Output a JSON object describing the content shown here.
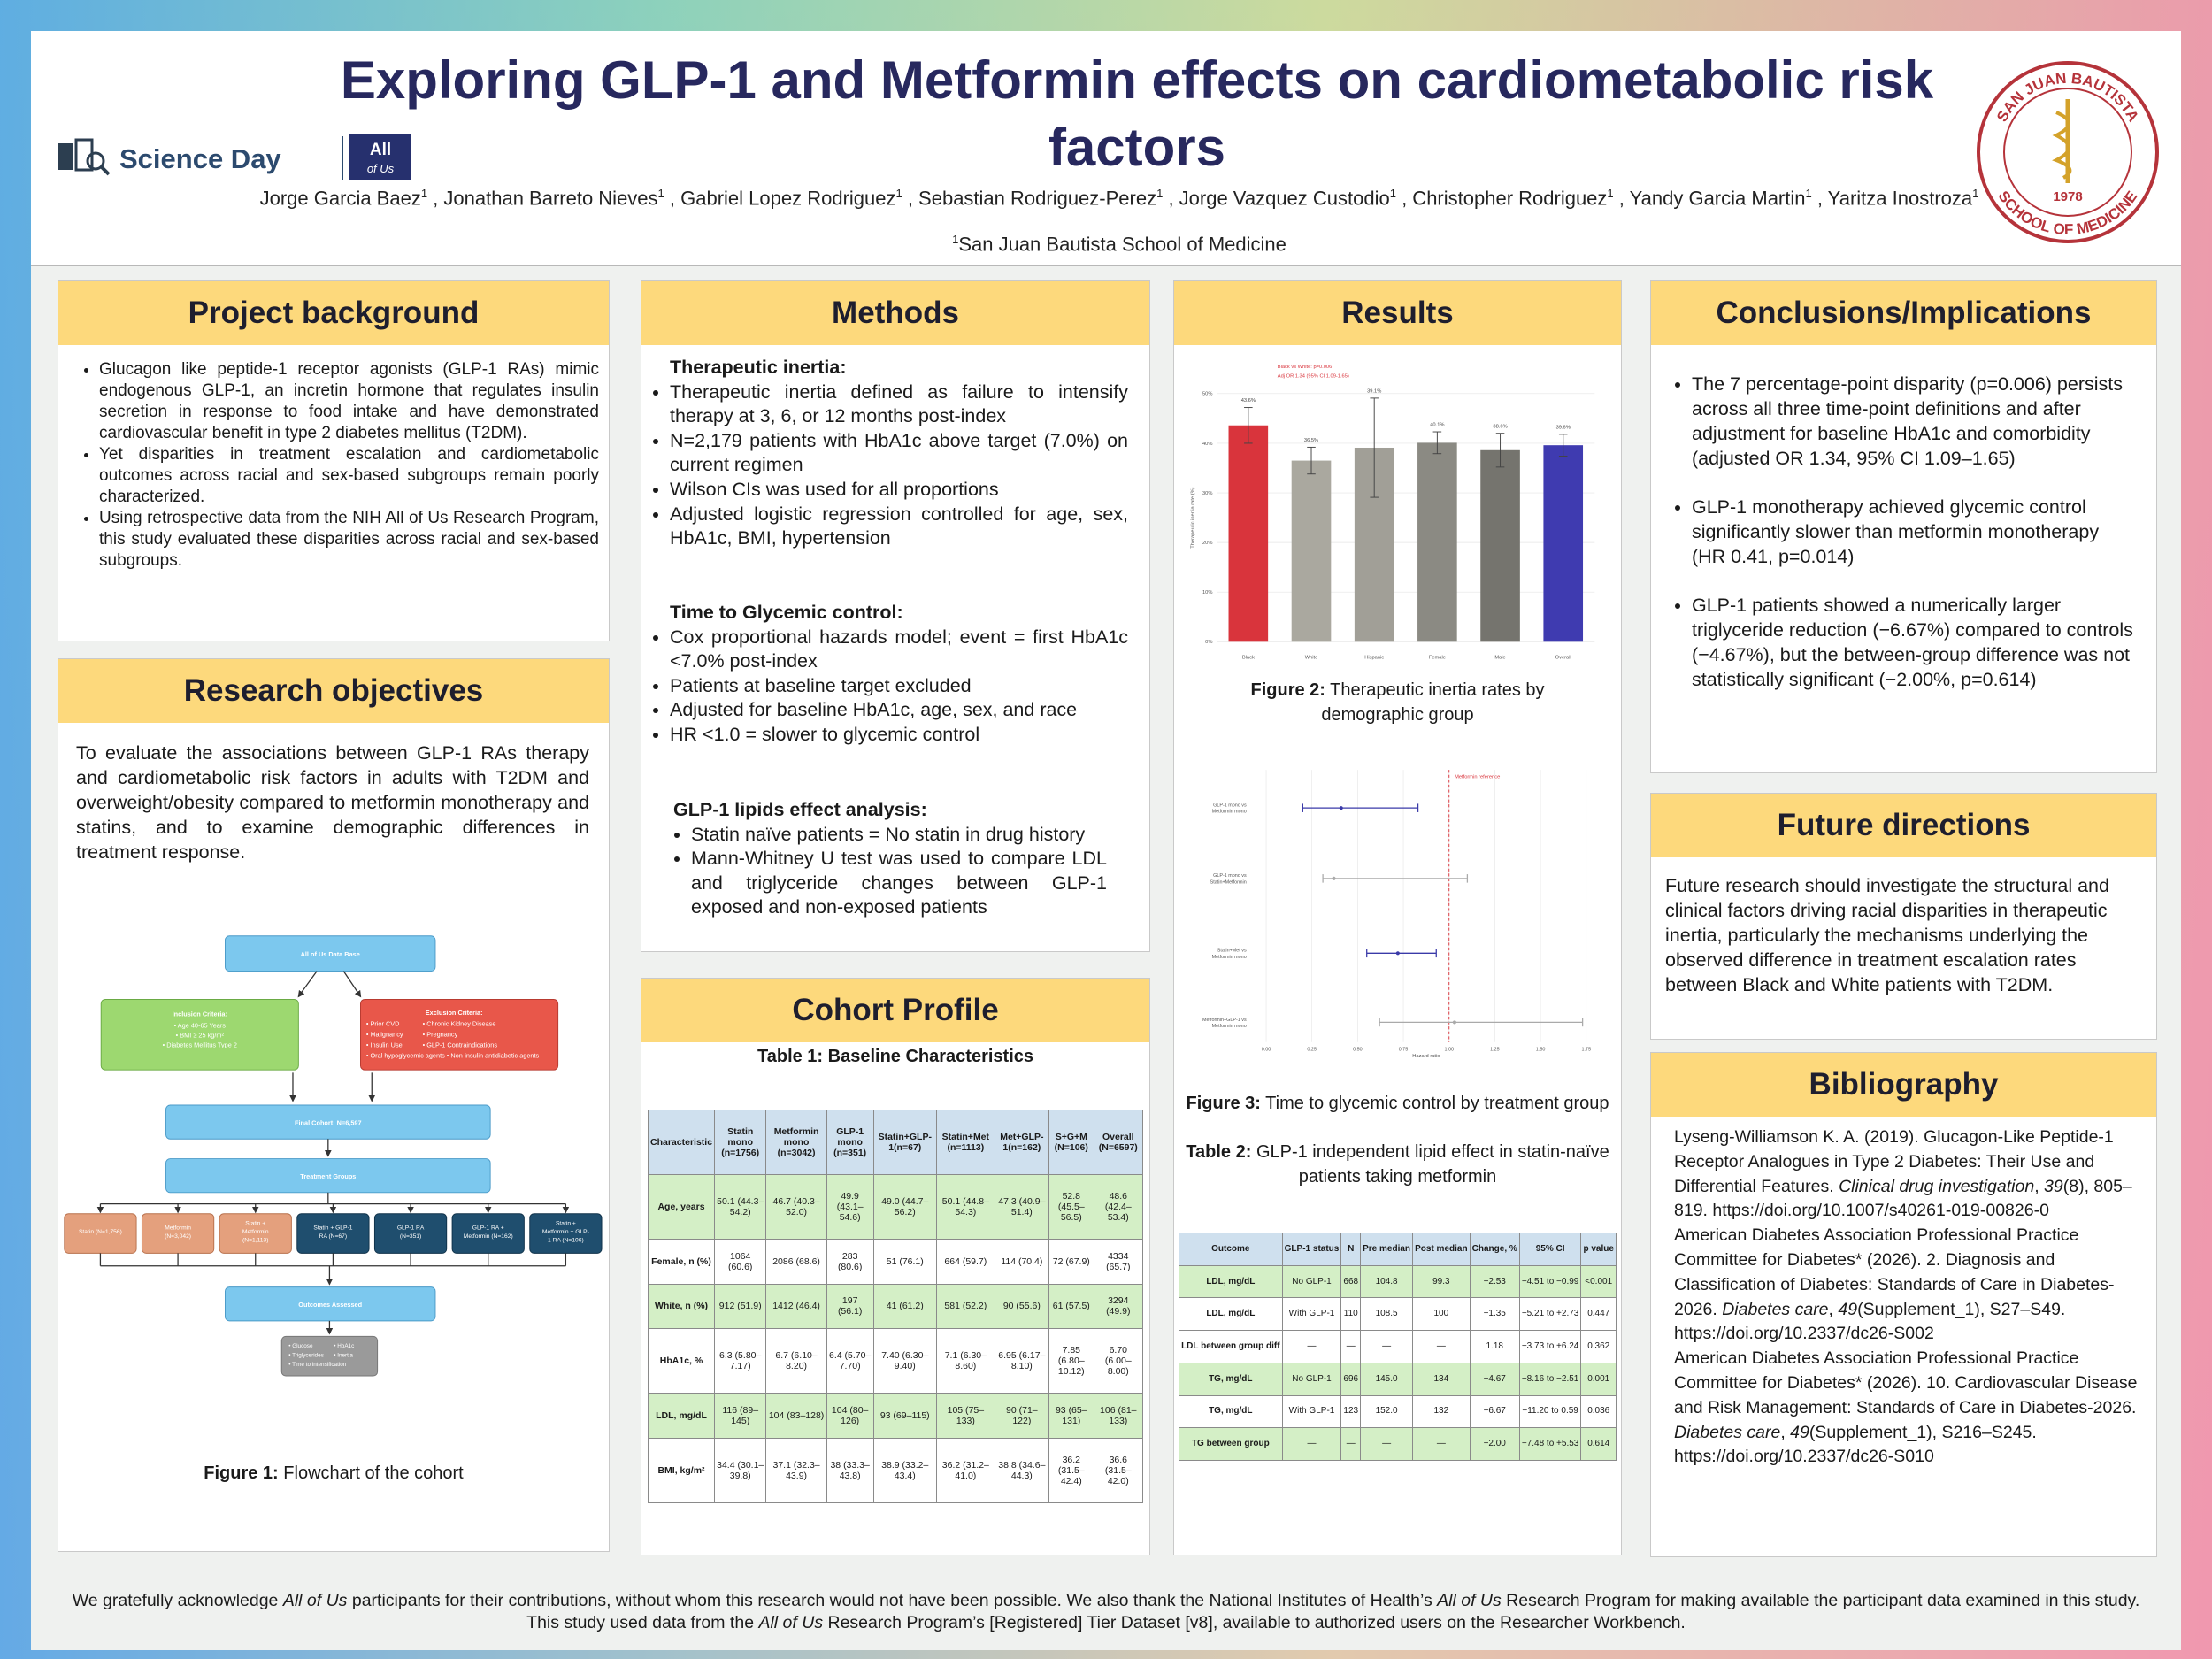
{
  "header": {
    "title": "Exploring GLP-1 and Metformin effects on cardiometabolic risk factors",
    "authors": [
      "Jorge Garcia Baez",
      1,
      " , Jonathan Barreto Nieves",
      1,
      " , Gabriel Lopez Rodriguez",
      1,
      " , Sebastian Rodriguez-Perez",
      1,
      " , Jorge Vazquez Custodio",
      1,
      " ,  Christopher Rodriguez",
      1,
      " , Yandy Garcia Martin",
      1,
      " , Yaritza Inostroza",
      1
    ],
    "affiliation": {
      "number": 1,
      "name": "San Juan Bautista School of Medicine"
    },
    "logos": {
      "science_day": "Science Day",
      "all_of_us": [
        "All",
        "of Us"
      ],
      "school_top": "SAN JUAN BAUTISTA",
      "school_bottom": "SCHOOL OF MEDICINE",
      "school_year": "1978"
    }
  },
  "project_background": {
    "title": "Project background",
    "bullets": [
      "Glucagon like peptide-1 receptor agonists (GLP-1 RAs) mimic endogenous GLP-1, an incretin hormone that regulates insulin secretion in response to food intake and have demonstrated cardiovascular benefit in type 2 diabetes mellitus (T2DM).",
      "Yet disparities in treatment escalation and cardiometabolic outcomes across racial and sex-based subgroups remain poorly characterized.",
      "Using retrospective data from the NIH All of Us Research Program, this study evaluated these disparities across racial and sex-based subgroups."
    ]
  },
  "research_objectives": {
    "title": "Research objectives",
    "text": "To evaluate the associations between GLP-1 RAs therapy and cardiometabolic risk factors in adults with T2DM and overweight/obesity compared to metformin monotherapy and statins, and to examine demographic differences in treatment response.",
    "flowchart": {
      "database": "All of Us Data Base",
      "inclusion": {
        "title": "Inclusion Criteria:",
        "items": [
          "• Age 40-65 Years",
          "• BMI ≥ 25 kg/m²",
          "• Diabetes Mellitus Type 2"
        ]
      },
      "exclusion": {
        "title": "Exclusion Criteria:",
        "items": [
          "• Prior CVD",
          "• Malignancy",
          "• Insulin Use",
          "• Chronic Kidney Disease",
          "• Pregnancy",
          "• GLP-1 Contraindications",
          "• Oral hypoglycemic agents • Non-insulin antidiabetic agents"
        ]
      },
      "final_cohort": "Final Cohort: N=6,597",
      "treatment_groups": "Treatment Groups",
      "groups": [
        [
          "Statin (N=1,756)"
        ],
        [
          "Metformin",
          "(N=3,042)"
        ],
        [
          "Statin +",
          "Metformin",
          "(N=1,113)"
        ],
        [
          "Statin + GLP-1",
          "RA (N=67)"
        ],
        [
          "GLP-1 RA",
          "(N=351)"
        ],
        [
          "GLP-1 RA +",
          "Metformin (N=162)"
        ],
        [
          "Statin +",
          "Metformin + GLP-",
          "1 RA (N=106)"
        ]
      ],
      "outcomes_title": "Outcomes Assessed",
      "outcomes": [
        "• Glucose",
        "• HbA1c",
        "• Triglycerides",
        "• Inertia",
        "• Time to intensification"
      ]
    },
    "figure1_caption": {
      "label": "Figure 1:",
      "text": "Flowchart of the cohort"
    }
  },
  "methods": {
    "title": "Methods",
    "sections": [
      {
        "heading": "Therapeutic inertia:",
        "items": [
          "Therapeutic inertia defined as failure to intensify therapy at 3, 6, or 12 months post-index",
          "N=2,179 patients with HbA1c above target (7.0%)  on current regimen",
          "Wilson CIs was used for all proportions",
          "Adjusted logistic regression controlled for age, sex, HbA1c, BMI, hypertension"
        ]
      },
      {
        "heading": "Time to Glycemic control:",
        "items": [
          "Cox proportional hazards model; event = first HbA1c <7.0% post-index",
          "Patients at baseline target excluded",
          "Adjusted for baseline HbA1c, age, sex, and race",
          "HR <1.0 = slower to  glycemic control"
        ]
      },
      {
        "heading": "GLP-1 lipids effect analysis:",
        "items": [
          "Statin naïve patients = No statin in drug history",
          "Mann-Whitney U test was used to compare LDL and triglyceride changes between GLP-1 exposed and non-exposed patients"
        ]
      }
    ]
  },
  "cohort_profile": {
    "title": "Cohort Profile",
    "table1": {
      "title": "Table 1: Baseline Characteristics",
      "columns": [
        "Characteristic",
        "Statin mono (n=1756)",
        "Metformin mono (n=3042)",
        "GLP-1 mono (n=351)",
        "Statin+GLP-1(n=67)",
        "Statin+Met (n=1113)",
        "Met+GLP-1(n=162)",
        "S+G+M (N=106)",
        "Overall (N=6597)"
      ],
      "rows": [
        [
          "Age, years",
          "50.1 (44.3–54.2)",
          "46.7 (40.3–52.0)",
          "49.9 (43.1–54.6)",
          "49.0 (44.7–56.2)",
          "50.1 (44.8–54.3)",
          "47.3 (40.9–51.4)",
          "52.8 (45.5–56.5)",
          "48.6 (42.4–53.4)"
        ],
        [
          "Female, n (%)",
          "1064 (60.6)",
          "2086 (68.6)",
          "283 (80.6)",
          "51 (76.1)",
          "664 (59.7)",
          "114 (70.4)",
          "72 (67.9)",
          "4334 (65.7)"
        ],
        [
          "White, n (%)",
          "912 (51.9)",
          "1412 (46.4)",
          "197 (56.1)",
          "41 (61.2)",
          "581 (52.2)",
          "90 (55.6)",
          "61 (57.5)",
          "3294 (49.9)"
        ],
        [
          "HbA1c, %",
          "6.3 (5.80–7.17)",
          "6.7 (6.10–8.20)",
          "6.4 (5.70–7.70)",
          "7.40 (6.30–9.40)",
          "7.1 (6.30–8.60)",
          "6.95 (6.17–8.10)",
          "7.85 (6.80–10.12)",
          "6.70 (6.00–8.00)"
        ],
        [
          "LDL, mg/dL",
          "116 (89–145)",
          "104 (83–128)",
          "104 (80–126)",
          "93 (69–115)",
          "105 (75–133)",
          "90 (71–122)",
          "93 (65–131)",
          "106 (81–133)"
        ],
        [
          "BMI, kg/m²",
          "34.4 (30.1–39.8)",
          "37.1 (32.3–43.9)",
          "38 (33.3–43.8)",
          "38.9 (33.2–43.4)",
          "36.2 (31.2–41.0)",
          "38.8 (34.6–44.3)",
          "36.2 (31.5–42.4)",
          "36.6 (31.5–42.0)"
        ]
      ]
    }
  },
  "results": {
    "title": "Results",
    "figure2": {
      "type": "bar",
      "categories": [
        "Black",
        "White",
        "Hispanic",
        "Female",
        "Male",
        "Overall"
      ],
      "values": [
        43.6,
        36.5,
        39.1,
        40.1,
        38.6,
        39.6
      ],
      "value_labels": [
        "43.6%",
        "36.5%",
        "39.1%",
        "40.1%",
        "38.6%",
        "39.6%"
      ],
      "errors": [
        3.6,
        2.7,
        10,
        2.2,
        3.4,
        2.2
      ],
      "colors": [
        "#d9343c",
        "#aaa89f",
        "#a19f97",
        "#8b8a83",
        "#75746e",
        "#3f3bb0"
      ],
      "ylim": [
        0,
        50
      ],
      "yticks": [
        {
          "value": 0,
          "label": "0%"
        },
        {
          "value": 10,
          "label": "10%"
        },
        {
          "value": 20,
          "label": "20%"
        },
        {
          "value": 30,
          "label": "30%"
        },
        {
          "value": 40,
          "label": "40%"
        },
        {
          "value": 50,
          "label": "50%"
        }
      ],
      "ylabel": "Therapeutic inertia rate (%)",
      "annotations": [
        "Black vs White: p=0.006",
        "Adj OR 1.34 (95% CI 1.09-1.65)"
      ],
      "grid": true
    },
    "figure2_caption": {
      "label": "Figure 2:",
      "text": "Therapeutic inertia rates by demographic group"
    },
    "figure3": {
      "type": "forest",
      "categories": [
        [
          "GLP-1 mono vs",
          "Metformin mono"
        ],
        [
          "GLP-1 mono vs",
          "Statin+Metformin"
        ],
        [
          "Statin+Met vs",
          "Metformin mono"
        ],
        [
          "Metformin+GLP-1 vs",
          "Metformin mono"
        ]
      ],
      "values": [
        0.41,
        0.37,
        0.72,
        1.03
      ],
      "ci_low": [
        0.2,
        0.31,
        0.55,
        0.62
      ],
      "ci_high": [
        0.83,
        1.1,
        0.93,
        1.73
      ],
      "colors": [
        "#3a3aa8",
        "#aaaaaa",
        "#3a3aa8",
        "#aaaaaa"
      ],
      "xlim": [
        0,
        1.75
      ],
      "xticks": [
        {
          "value": 0,
          "label": "0.00"
        },
        {
          "value": 0.25,
          "label": "0.25"
        },
        {
          "value": 0.5,
          "label": "0.50"
        },
        {
          "value": 0.75,
          "label": "0.75"
        },
        {
          "value": 1,
          "label": "1.00"
        },
        {
          "value": 1.25,
          "label": "1.25"
        },
        {
          "value": 1.5,
          "label": "1.50"
        },
        {
          "value": 1.75,
          "label": "1.75"
        }
      ],
      "xlabel": "Hazard ratio",
      "reference": {
        "value": 1,
        "label": "Metformin reference"
      },
      "grid": true
    },
    "figure3_caption": {
      "label": "Figure 3:",
      "text": " Time to glycemic control by treatment group"
    },
    "table2_caption": {
      "label": "Table 2:",
      "text": "GLP-1 independent lipid effect in statin-naïve patients taking metformin"
    },
    "table2": {
      "columns": [
        "Outcome",
        "GLP-1 status",
        "N",
        "Pre median",
        "Post median",
        "Change, %",
        "95% CI",
        "p value"
      ],
      "rows": [
        [
          "LDL, mg/dL",
          "No GLP-1",
          "668",
          "104.8",
          "99.3",
          "−2.53",
          "−4.51 to −0.99",
          "<0.001"
        ],
        [
          "LDL, mg/dL",
          "With GLP-1",
          "110",
          "108.5",
          "100",
          "−1.35",
          "−5.21 to +2.73",
          "0.447"
        ],
        [
          "LDL between group diff",
          "—",
          "—",
          "—",
          "—",
          "1.18",
          "−3.73 to +6.24",
          "0.362"
        ],
        [
          "TG, mg/dL",
          "No GLP-1",
          "696",
          "145.0",
          "134",
          "−4.67",
          "−8.16 to −2.51",
          "0.001"
        ],
        [
          "TG, mg/dL",
          "With GLP-1",
          "123",
          "152.0",
          "132",
          "−6.67",
          "−11.20 to 0.59",
          "0.036"
        ],
        [
          "TG between group",
          "—",
          "—",
          "—",
          "—",
          "−2.00",
          "−7.48 to +5.53",
          "0.614"
        ]
      ]
    }
  },
  "conclusions": {
    "title": "Conclusions/Implications",
    "bullets": [
      "The 7 percentage-point disparity (p=0.006) persists across all three time-point definitions and after adjustment for baseline HbA1c and comorbidity (adjusted OR 1.34, 95% CI 1.09–1.65)",
      "GLP-1 monotherapy achieved glycemic control significantly slower than metformin monotherapy (HR 0.41, p=0.014)",
      "GLP-1 patients showed a numerically larger triglyceride reduction (−6.67%) compared to controls (−4.67%), but the between-group difference was not statistically significant (−2.00%, p=0.614)"
    ]
  },
  "future_directions": {
    "title": "Future directions",
    "text": "Future research should investigate the structural and clinical factors driving racial disparities in therapeutic inertia, particularly the mechanisms underlying the observed difference in treatment escalation rates between Black and White patients with T2DM."
  },
  "bibliography": {
    "title": "Bibliography",
    "entries": [
      {
        "parts": [
          "Lyseng-Williamson K. A. (2019). Glucagon-Like Peptide-1 Receptor Analogues in Type 2 Diabetes: Their Use and Differential Features. ",
          "Clinical drug investigation",
          ", ",
          "39",
          "(8), 805–819. "
        ],
        "doi": "https://doi.org/10.1007/s40261-019-00826-0"
      },
      {
        "parts": [
          "American Diabetes Association Professional Practice Committee for Diabetes* (2026). 2. Diagnosis and Classification of Diabetes: Standards of Care in Diabetes-2026. ",
          "Diabetes care",
          ", ",
          "49",
          "(Supplement_1), S27–S49. "
        ],
        "doi": "https://doi.org/10.2337/dc26-S002"
      },
      {
        "parts": [
          "American Diabetes Association Professional Practice Committee for Diabetes* (2026). 10. Cardiovascular Disease and Risk Management: Standards of Care in Diabetes-2026. ",
          "Diabetes care",
          ", ",
          "49",
          "(Supplement_1), S216–S245. "
        ],
        "doi": "https://doi.org/10.2337/dc26-S010"
      }
    ]
  },
  "acknowledgment": [
    "We gratefully acknowledge ",
    "All of Us",
    " participants for their contributions, without whom this research would not have been possible. We also thank the National Institutes of Health’s ",
    "All of Us",
    " Research Program for making available the participant data examined in this study. This study used data from the ",
    "All of Us",
    " Research Program’s [Registered] Tier Dataset [v8], available to authorized users on the Researcher Workbench."
  ]
}
